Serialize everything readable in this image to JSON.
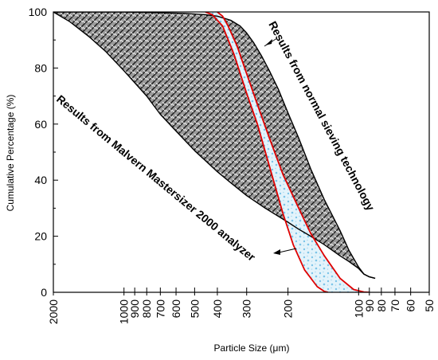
{
  "chart_data": {
    "type": "area",
    "xlabel": "Particle Size (μm)",
    "ylabel": "Cumulative Percentage (%)",
    "x_scale": "log-reversed",
    "xlim": [
      2000,
      50
    ],
    "ylim": [
      0,
      100
    ],
    "x_ticks": [
      2000,
      1000,
      900,
      800,
      700,
      600,
      500,
      400,
      300,
      200,
      100,
      90,
      80,
      70,
      60,
      50
    ],
    "x_tick_labels": [
      "2000",
      "1000",
      "900",
      "800",
      "700",
      "600",
      "500",
      "400",
      "300",
      "200",
      "100",
      "90",
      "80",
      "70",
      "60",
      "50"
    ],
    "y_ticks": [
      0,
      20,
      40,
      60,
      80,
      100
    ],
    "y_tick_labels": [
      "0",
      "20",
      "40",
      "60",
      "80",
      "100"
    ],
    "series": [
      {
        "name": "Results from normal sieving technology",
        "color": "#000000",
        "x": [
          2000,
          1400,
          1000,
          700,
          550,
          450,
          400,
          350,
          320,
          300,
          280,
          260,
          240,
          220,
          200,
          180,
          160,
          140,
          120,
          110,
          100,
          95,
          90,
          85
        ],
        "y": [
          100,
          100,
          100,
          99.7,
          99.5,
          99,
          98.5,
          97,
          95,
          92.5,
          89,
          84.5,
          79,
          72.5,
          64,
          55,
          44,
          33,
          22,
          15,
          9,
          6.5,
          5.5,
          5
        ]
      },
      {
        "name": "Results from Malvern Mastersizer 2000 analyzer",
        "color": "#000000",
        "x": [
          2000,
          1700,
          1400,
          1200,
          1000,
          800,
          700,
          600,
          500,
          400,
          350,
          300,
          250,
          200,
          180,
          160,
          140,
          120,
          110,
          100,
          95,
          90,
          85
        ],
        "y": [
          100,
          96.5,
          91,
          86,
          79,
          70,
          63.5,
          57.5,
          50.5,
          43,
          39,
          34.5,
          30,
          25,
          22.5,
          20,
          17,
          13,
          11,
          8.5,
          6.5,
          5.5,
          5
        ]
      },
      {
        "name": "",
        "color": "#e00000",
        "x": [
          450,
          420,
          380,
          340,
          300,
          270,
          240,
          210,
          190,
          170,
          150,
          140,
          135
        ],
        "y": [
          100,
          99,
          95,
          85,
          71,
          60,
          45,
          28,
          17,
          8,
          2,
          0.3,
          0
        ]
      },
      {
        "name": "",
        "color": "#e00000",
        "x": [
          400,
          380,
          360,
          330,
          300,
          270,
          240,
          210,
          180,
          160,
          140,
          120,
          105,
          95,
          90
        ],
        "y": [
          100,
          98.5,
          95,
          88,
          78,
          67,
          55,
          42,
          30,
          21,
          13,
          5,
          1,
          0.1,
          0
        ]
      }
    ],
    "annotations": [
      "Results from normal sieving technology",
      "Results from Malvern Mastersizer 2000 analyzer"
    ],
    "grid": false,
    "legend": "none"
  }
}
